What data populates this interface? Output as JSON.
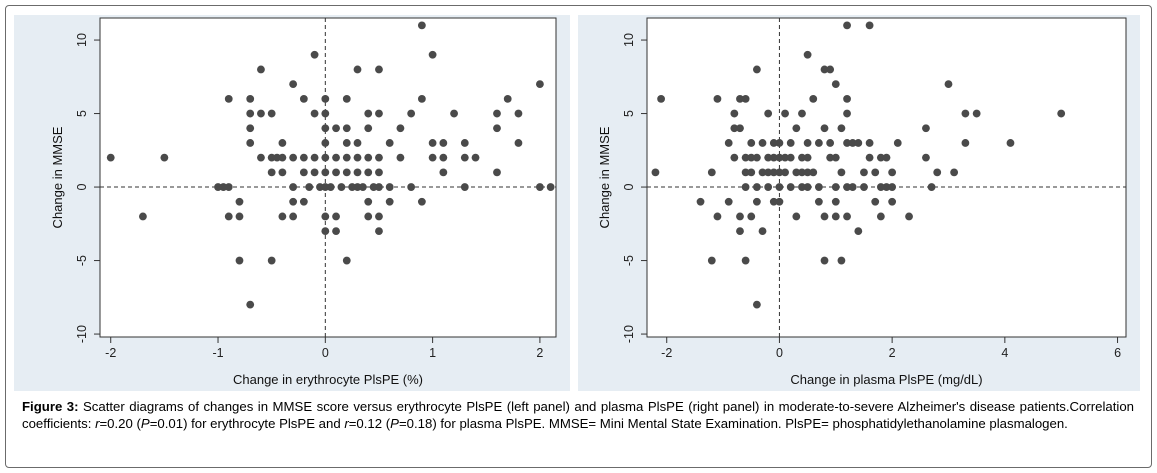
{
  "figure": {
    "label": "Figure 3:",
    "caption_part1": " Scatter diagrams of changes in MMSE score versus erythrocyte PlsPE (left panel) and plasma PlsPE (right panel) in moderate-to-severe Alzheimer's disease patients.Correlation coefficients: ",
    "r_symbol": "r",
    "caption_part2": "=0.20 (",
    "p_symbol": "P",
    "caption_part3": "=0.01) for erythrocyte PlsPE and ",
    "caption_part4": "=0.12 (",
    "caption_part5": "=0.18) for plasma PlsPE. MMSE= Mini Mental State Examination. PlsPE= phosphatidylethanolamine plasmalogen."
  },
  "colors": {
    "panel_bg": "#e6edf3",
    "plot_bg": "#ffffff",
    "marker": "#4a4a4a",
    "axis": "#333333"
  },
  "chart_data": [
    {
      "type": "scatter",
      "title": "",
      "xlabel": "Change in erythrocyte PlsPE (%)",
      "ylabel": "Change in MMSE",
      "xlim": [
        -2.1,
        2.15
      ],
      "ylim": [
        -10.2,
        11.5
      ],
      "xticks": [
        -2,
        -1,
        0,
        1,
        2
      ],
      "yticks": [
        -10,
        -5,
        0,
        5,
        10
      ],
      "reference_lines": {
        "x": 0,
        "y": 0,
        "style": "dashed"
      },
      "grid": false,
      "points": [
        [
          -2,
          2
        ],
        [
          -1.7,
          -2
        ],
        [
          -1.5,
          2
        ],
        [
          -1,
          0
        ],
        [
          -0.95,
          0
        ],
        [
          -0.9,
          6
        ],
        [
          -0.9,
          0
        ],
        [
          -0.9,
          -2
        ],
        [
          -0.8,
          -1
        ],
        [
          -0.8,
          -2
        ],
        [
          -0.8,
          -5
        ],
        [
          -0.7,
          6
        ],
        [
          -0.7,
          5
        ],
        [
          -0.7,
          4
        ],
        [
          -0.7,
          3
        ],
        [
          -0.7,
          -8
        ],
        [
          -0.6,
          8
        ],
        [
          -0.6,
          5
        ],
        [
          -0.6,
          2
        ],
        [
          -0.5,
          5
        ],
        [
          -0.5,
          2
        ],
        [
          -0.5,
          1
        ],
        [
          -0.5,
          -5
        ],
        [
          -0.45,
          2
        ],
        [
          -0.4,
          3
        ],
        [
          -0.4,
          2
        ],
        [
          -0.4,
          1
        ],
        [
          -0.4,
          -2
        ],
        [
          -0.3,
          7
        ],
        [
          -0.3,
          2
        ],
        [
          -0.3,
          0
        ],
        [
          -0.3,
          -1
        ],
        [
          -0.3,
          -2
        ],
        [
          -0.2,
          6
        ],
        [
          -0.2,
          2
        ],
        [
          -0.2,
          1
        ],
        [
          -0.2,
          -1
        ],
        [
          -0.15,
          0
        ],
        [
          -0.1,
          9
        ],
        [
          -0.1,
          5
        ],
        [
          -0.1,
          2
        ],
        [
          -0.1,
          1
        ],
        [
          -0.05,
          0
        ],
        [
          0,
          6
        ],
        [
          0,
          5
        ],
        [
          0,
          4
        ],
        [
          0,
          3
        ],
        [
          0,
          2
        ],
        [
          0,
          1
        ],
        [
          0,
          0
        ],
        [
          0,
          -2
        ],
        [
          0,
          -3
        ],
        [
          0.05,
          0
        ],
        [
          0.1,
          4
        ],
        [
          0.1,
          2
        ],
        [
          0.1,
          1
        ],
        [
          0.1,
          -2
        ],
        [
          0.1,
          -3
        ],
        [
          0.15,
          0
        ],
        [
          0.2,
          6
        ],
        [
          0.2,
          4
        ],
        [
          0.2,
          3
        ],
        [
          0.2,
          2
        ],
        [
          0.2,
          1
        ],
        [
          0.2,
          -5
        ],
        [
          0.25,
          0
        ],
        [
          0.3,
          8
        ],
        [
          0.3,
          3
        ],
        [
          0.3,
          2
        ],
        [
          0.3,
          1
        ],
        [
          0.3,
          0
        ],
        [
          0.35,
          0
        ],
        [
          0.4,
          5
        ],
        [
          0.4,
          4
        ],
        [
          0.4,
          2
        ],
        [
          0.4,
          1
        ],
        [
          0.4,
          -1
        ],
        [
          0.4,
          -2
        ],
        [
          0.45,
          0
        ],
        [
          0.5,
          8
        ],
        [
          0.5,
          5
        ],
        [
          0.5,
          2
        ],
        [
          0.5,
          1
        ],
        [
          0.5,
          0
        ],
        [
          0.5,
          -2
        ],
        [
          0.5,
          -3
        ],
        [
          0.6,
          3
        ],
        [
          0.6,
          0
        ],
        [
          0.6,
          -1
        ],
        [
          0.7,
          4
        ],
        [
          0.7,
          2
        ],
        [
          0.8,
          5
        ],
        [
          0.8,
          0
        ],
        [
          0.9,
          11
        ],
        [
          0.9,
          6
        ],
        [
          0.9,
          -1
        ],
        [
          1,
          9
        ],
        [
          1,
          3
        ],
        [
          1,
          2
        ],
        [
          1.1,
          3
        ],
        [
          1.1,
          2
        ],
        [
          1.1,
          1
        ],
        [
          1.2,
          5
        ],
        [
          1.3,
          3
        ],
        [
          1.3,
          2
        ],
        [
          1.3,
          0
        ],
        [
          1.4,
          2
        ],
        [
          1.6,
          5
        ],
        [
          1.6,
          4
        ],
        [
          1.6,
          1
        ],
        [
          1.7,
          6
        ],
        [
          1.8,
          5
        ],
        [
          1.8,
          3
        ],
        [
          2,
          7
        ],
        [
          2,
          0
        ],
        [
          2.1,
          0
        ]
      ]
    },
    {
      "type": "scatter",
      "title": "",
      "xlabel": "Change in plasma PlsPE (mg/dL)",
      "ylabel": "Change in MMSE",
      "xlim": [
        -2.35,
        6.15
      ],
      "ylim": [
        -10.2,
        11.5
      ],
      "xticks": [
        -2,
        0,
        2,
        4,
        6
      ],
      "yticks": [
        -10,
        -5,
        0,
        5,
        10
      ],
      "reference_lines": {
        "x": 0,
        "y": 0,
        "style": "dashed"
      },
      "grid": false,
      "points": [
        [
          -2.2,
          1
        ],
        [
          -2.1,
          6
        ],
        [
          -1.4,
          -1
        ],
        [
          -1.2,
          1
        ],
        [
          -1.2,
          -5
        ],
        [
          -1.1,
          6
        ],
        [
          -1.1,
          -2
        ],
        [
          -0.9,
          3
        ],
        [
          -0.9,
          -1
        ],
        [
          -0.8,
          5
        ],
        [
          -0.8,
          4
        ],
        [
          -0.8,
          2
        ],
        [
          -0.7,
          6
        ],
        [
          -0.7,
          4
        ],
        [
          -0.7,
          -2
        ],
        [
          -0.7,
          -3
        ],
        [
          -0.6,
          6
        ],
        [
          -0.6,
          2
        ],
        [
          -0.6,
          1
        ],
        [
          -0.6,
          0
        ],
        [
          -0.6,
          -5
        ],
        [
          -0.5,
          3
        ],
        [
          -0.5,
          2
        ],
        [
          -0.5,
          1
        ],
        [
          -0.5,
          -2
        ],
        [
          -0.4,
          8
        ],
        [
          -0.4,
          2
        ],
        [
          -0.4,
          0
        ],
        [
          -0.4,
          -1
        ],
        [
          -0.4,
          -8
        ],
        [
          -0.3,
          3
        ],
        [
          -0.3,
          1
        ],
        [
          -0.3,
          -3
        ],
        [
          -0.2,
          5
        ],
        [
          -0.2,
          2
        ],
        [
          -0.2,
          1
        ],
        [
          -0.2,
          0
        ],
        [
          -0.1,
          3
        ],
        [
          -0.1,
          2
        ],
        [
          -0.1,
          1
        ],
        [
          -0.1,
          -1
        ],
        [
          0,
          3
        ],
        [
          0,
          2
        ],
        [
          0,
          1
        ],
        [
          0,
          0
        ],
        [
          0,
          -1
        ],
        [
          0.1,
          5
        ],
        [
          0.1,
          2
        ],
        [
          0.1,
          1
        ],
        [
          0.2,
          3
        ],
        [
          0.2,
          2
        ],
        [
          0.2,
          0
        ],
        [
          0.3,
          4
        ],
        [
          0.3,
          1
        ],
        [
          0.3,
          -2
        ],
        [
          0.4,
          5
        ],
        [
          0.4,
          2
        ],
        [
          0.4,
          1
        ],
        [
          0.4,
          0
        ],
        [
          0.5,
          9
        ],
        [
          0.5,
          3
        ],
        [
          0.5,
          2
        ],
        [
          0.5,
          1
        ],
        [
          0.5,
          0
        ],
        [
          0.6,
          6
        ],
        [
          0.6,
          1
        ],
        [
          0.7,
          3
        ],
        [
          0.7,
          0
        ],
        [
          0.7,
          -1
        ],
        [
          0.8,
          8
        ],
        [
          0.8,
          4
        ],
        [
          0.8,
          -2
        ],
        [
          0.8,
          -5
        ],
        [
          0.9,
          8
        ],
        [
          0.9,
          3
        ],
        [
          0.9,
          2
        ],
        [
          1,
          7
        ],
        [
          1,
          2
        ],
        [
          1,
          0
        ],
        [
          1,
          -1
        ],
        [
          1,
          -2
        ],
        [
          1.1,
          4
        ],
        [
          1.1,
          1
        ],
        [
          1.1,
          -5
        ],
        [
          1.2,
          11
        ],
        [
          1.2,
          6
        ],
        [
          1.2,
          5
        ],
        [
          1.2,
          3
        ],
        [
          1.2,
          0
        ],
        [
          1.2,
          -2
        ],
        [
          1.3,
          3
        ],
        [
          1.3,
          0
        ],
        [
          1.4,
          3
        ],
        [
          1.4,
          -3
        ],
        [
          1.5,
          1
        ],
        [
          1.5,
          0
        ],
        [
          1.6,
          11
        ],
        [
          1.6,
          3
        ],
        [
          1.6,
          2
        ],
        [
          1.7,
          1
        ],
        [
          1.7,
          -1
        ],
        [
          1.8,
          2
        ],
        [
          1.8,
          0
        ],
        [
          1.8,
          -2
        ],
        [
          1.9,
          2
        ],
        [
          1.9,
          0
        ],
        [
          2,
          1
        ],
        [
          2,
          0
        ],
        [
          2,
          -1
        ],
        [
          2.1,
          3
        ],
        [
          2.3,
          -2
        ],
        [
          2.6,
          4
        ],
        [
          2.6,
          2
        ],
        [
          2.7,
          0
        ],
        [
          2.8,
          1
        ],
        [
          3,
          7
        ],
        [
          3.1,
          1
        ],
        [
          3.3,
          5
        ],
        [
          3.3,
          3
        ],
        [
          3.5,
          5
        ],
        [
          4.1,
          3
        ],
        [
          5,
          5
        ]
      ]
    }
  ]
}
